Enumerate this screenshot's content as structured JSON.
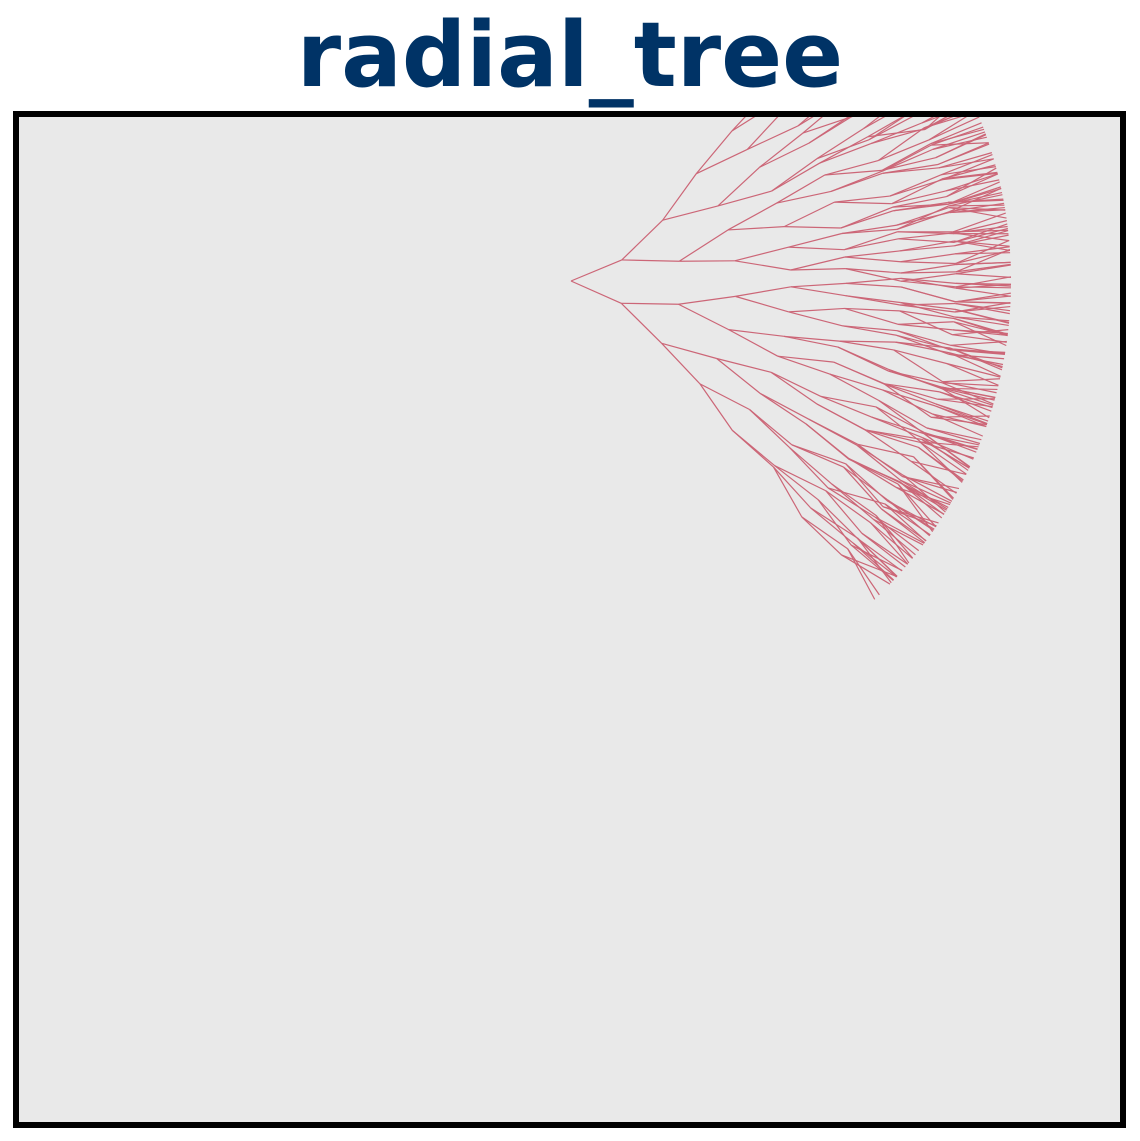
{
  "title": "radial_tree",
  "colors": {
    "title": "#003366",
    "background": "#e9e9e9",
    "frame": "#000000",
    "edges": "#cc6677"
  },
  "tree": {
    "type": "radial_tree",
    "branching": 2,
    "depth": 8,
    "fan_angle_degrees": 90,
    "orientation": "right"
  }
}
